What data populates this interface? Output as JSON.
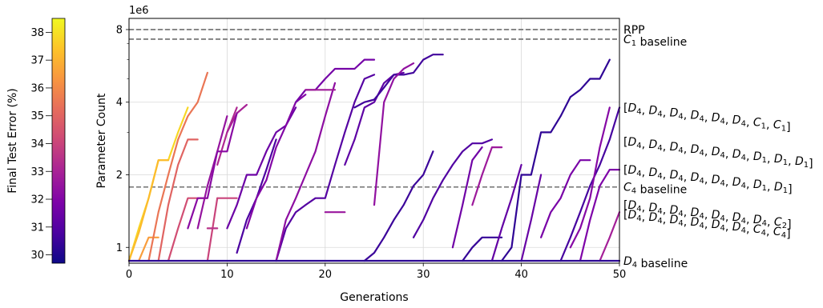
{
  "chart_data": {
    "type": "line",
    "xlabel": "Generations",
    "ylabel": "Parameter Count",
    "y_offset_text": "1e6",
    "xlim": [
      0,
      50
    ],
    "ylim": [
      0.86,
      8.9
    ],
    "y_scale": "log",
    "x_ticks": [
      "0",
      "10",
      "20",
      "30",
      "40",
      "50"
    ],
    "y_ticks": [
      {
        "value": 1,
        "label": "1"
      },
      {
        "value": 2,
        "label": "2"
      },
      {
        "value": 4,
        "label": "4"
      },
      {
        "value": 8,
        "label": "8"
      }
    ],
    "grid": true,
    "colorbar": {
      "label": "Final Test Error (%)",
      "min": 29.7,
      "max": 38.5,
      "ticks": [
        "30",
        "31",
        "32",
        "33",
        "34",
        "35",
        "36",
        "37",
        "38"
      ],
      "colormap": "plasma"
    },
    "reference_lines": [
      {
        "name": "RPP",
        "y": 8.0
      },
      {
        "name": "C_1 baseline",
        "y": 7.3
      },
      {
        "name": "C_4 baseline",
        "y": 1.78
      },
      {
        "name": "D_4 baseline",
        "y": 0.88
      }
    ],
    "right_labels": [
      {
        "text": "[D4, D4, D4, D4, D4, D4, C1, C1]",
        "y": 3.8
      },
      {
        "text": "[D4, D4, D4, D4, D4, D4, D1, D1, D1]",
        "y": 2.75
      },
      {
        "text": "[D4, D4, D4, D4, D4, D4, D1, D1]",
        "y": 2.1
      },
      {
        "text": "[D4, D4, D4, D4, D4, D4, D4, C2]",
        "y": 1.5
      },
      {
        "text": "[D4, D4, D4, D4, D4, D4, C4, C4]",
        "y": 1.37
      }
    ],
    "series": [
      {
        "error": 37.8,
        "x": [
          0,
          1,
          2,
          3,
          4,
          5,
          6
        ],
        "y": [
          0.88,
          1.2,
          1.6,
          2.3,
          2.3,
          3.0,
          3.8
        ]
      },
      {
        "error": 37.2,
        "x": [
          0,
          1,
          2,
          3,
          4
        ],
        "y": [
          0.88,
          1.15,
          1.6,
          2.3,
          2.3
        ]
      },
      {
        "error": 36.5,
        "x": [
          1,
          2,
          3
        ],
        "y": [
          0.88,
          1.1,
          1.1
        ]
      },
      {
        "error": 35.5,
        "x": [
          2,
          3,
          4,
          5,
          6,
          7,
          8
        ],
        "y": [
          0.88,
          1.4,
          2.0,
          2.8,
          3.5,
          4.0,
          5.3
        ]
      },
      {
        "error": 35.0,
        "x": [
          3,
          4,
          5,
          6,
          7
        ],
        "y": [
          0.88,
          1.5,
          2.2,
          2.8,
          2.8
        ]
      },
      {
        "error": 34.3,
        "x": [
          4,
          5,
          6,
          7,
          8
        ],
        "y": [
          0.88,
          1.2,
          1.6,
          1.6,
          1.6
        ]
      },
      {
        "error": 34.0,
        "x": [
          8,
          9
        ],
        "y": [
          0.88,
          1.6
        ]
      },
      {
        "error": 34.0,
        "x": [
          9,
          10,
          11
        ],
        "y": [
          1.6,
          1.6,
          1.6
        ]
      },
      {
        "error": 33.5,
        "x": [
          8,
          9
        ],
        "y": [
          1.2,
          1.2
        ]
      },
      {
        "error": 33.2,
        "x": [
          9,
          10,
          11
        ],
        "y": [
          2.2,
          3.0,
          3.8
        ]
      },
      {
        "error": 33.0,
        "x": [
          10,
          11,
          12
        ],
        "y": [
          3.0,
          3.6,
          3.9
        ]
      },
      {
        "error": 32.5,
        "x": [
          7,
          8,
          9,
          10
        ],
        "y": [
          1.2,
          1.8,
          2.5,
          3.5
        ]
      },
      {
        "error": 32.2,
        "x": [
          6,
          7,
          8,
          9,
          10,
          11
        ],
        "y": [
          1.2,
          1.6,
          1.6,
          2.5,
          2.5,
          3.6
        ]
      },
      {
        "error": 31.5,
        "x": [
          10,
          11,
          12,
          13,
          14,
          15,
          16,
          17
        ],
        "y": [
          1.2,
          1.5,
          2.0,
          2.0,
          2.5,
          3.0,
          3.2,
          3.8
        ]
      },
      {
        "error": 30.8,
        "x": [
          11,
          12,
          13,
          14,
          15
        ],
        "y": [
          0.95,
          1.3,
          1.6,
          2.1,
          2.8
        ]
      },
      {
        "error": 32.0,
        "x": [
          12,
          13,
          14,
          15,
          16,
          17,
          18
        ],
        "y": [
          1.2,
          1.6,
          1.9,
          2.6,
          3.2,
          4.0,
          4.3
        ]
      },
      {
        "error": 31.0,
        "x": [
          15,
          16,
          17,
          18,
          19,
          20,
          21,
          22,
          23,
          24,
          25
        ],
        "y": [
          0.88,
          1.2,
          1.4,
          1.5,
          1.6,
          1.6,
          2.2,
          3.0,
          4.0,
          5.0,
          5.2
        ]
      },
      {
        "error": 32.3,
        "x": [
          15,
          16,
          17,
          18,
          19,
          20,
          21
        ],
        "y": [
          0.88,
          1.3,
          1.6,
          2.0,
          2.5,
          3.5,
          4.8
        ]
      },
      {
        "error": 31.7,
        "x": [
          17,
          18,
          19,
          20,
          21,
          22,
          23,
          24,
          25
        ],
        "y": [
          4.0,
          4.5,
          4.5,
          5.0,
          5.5,
          5.5,
          5.5,
          6.0,
          6.0
        ]
      },
      {
        "error": 32.8,
        "x": [
          18,
          19,
          20,
          21
        ],
        "y": [
          4.5,
          4.5,
          4.5,
          4.5
        ]
      },
      {
        "error": 32.6,
        "x": [
          20,
          21,
          22
        ],
        "y": [
          1.4,
          1.4,
          1.4
        ]
      },
      {
        "error": 31.2,
        "x": [
          22,
          23,
          24,
          25,
          26,
          27,
          28
        ],
        "y": [
          2.2,
          2.8,
          3.8,
          4.0,
          4.8,
          5.2,
          5.3
        ]
      },
      {
        "error": 30.6,
        "x": [
          23,
          24,
          25,
          26,
          27,
          28,
          29,
          30,
          31,
          32
        ],
        "y": [
          3.8,
          4.0,
          4.1,
          4.6,
          5.2,
          5.2,
          5.3,
          6.0,
          6.3,
          6.3
        ]
      },
      {
        "error": 32.4,
        "x": [
          25,
          26,
          27,
          28,
          29
        ],
        "y": [
          1.5,
          4.0,
          5.0,
          5.5,
          5.8
        ]
      },
      {
        "error": 30.5,
        "x": [
          24,
          25,
          26,
          27,
          28,
          29,
          30,
          31
        ],
        "y": [
          0.88,
          0.95,
          1.1,
          1.3,
          1.5,
          1.8,
          2.0,
          2.5
        ]
      },
      {
        "error": 30.9,
        "x": [
          29,
          30,
          31,
          32,
          33,
          34,
          35,
          36,
          37
        ],
        "y": [
          1.1,
          1.3,
          1.6,
          1.9,
          2.2,
          2.5,
          2.7,
          2.7,
          2.8
        ]
      },
      {
        "error": 31.6,
        "x": [
          33,
          34,
          35,
          36
        ],
        "y": [
          1.0,
          1.5,
          2.3,
          2.6
        ]
      },
      {
        "error": 32.7,
        "x": [
          35,
          36,
          37,
          38
        ],
        "y": [
          1.5,
          2.0,
          2.6,
          2.6
        ]
      },
      {
        "error": 30.4,
        "x": [
          34,
          35,
          36,
          37,
          38
        ],
        "y": [
          0.88,
          1.0,
          1.1,
          1.1,
          1.1
        ]
      },
      {
        "error": 31.3,
        "x": [
          37,
          38,
          39,
          40
        ],
        "y": [
          0.88,
          1.2,
          1.6,
          2.2
        ]
      },
      {
        "error": 30.3,
        "x": [
          38,
          39,
          40,
          41,
          42,
          43,
          44,
          45,
          46,
          47,
          48,
          49
        ],
        "y": [
          0.88,
          1.0,
          2.0,
          2.0,
          3.0,
          3.0,
          3.5,
          4.2,
          4.5,
          5.0,
          5.0,
          6.0
        ]
      },
      {
        "error": 31.4,
        "x": [
          40,
          41,
          42
        ],
        "y": [
          0.88,
          1.3,
          2.0
        ]
      },
      {
        "error": 31.8,
        "x": [
          42,
          43,
          44,
          45,
          46,
          47
        ],
        "y": [
          1.1,
          1.4,
          1.6,
          2.0,
          2.3,
          2.3
        ]
      },
      {
        "error": 30.7,
        "x": [
          44,
          45,
          46,
          47,
          48,
          49,
          50
        ],
        "y": [
          0.88,
          1.1,
          1.4,
          1.8,
          2.2,
          2.8,
          3.8
        ]
      },
      {
        "error": 31.9,
        "x": [
          46,
          47,
          48,
          49,
          50
        ],
        "y": [
          0.88,
          1.3,
          1.8,
          2.1,
          2.1
        ]
      },
      {
        "error": 32.9,
        "x": [
          48,
          49,
          50
        ],
        "y": [
          0.88,
          1.1,
          1.4
        ]
      },
      {
        "error": 32.1,
        "x": [
          45,
          46,
          47,
          48,
          49
        ],
        "y": [
          1.0,
          1.2,
          1.6,
          2.6,
          3.8
        ]
      },
      {
        "error": 30.2,
        "x": [
          0,
          10,
          20,
          30,
          40,
          50
        ],
        "y": [
          0.88,
          0.88,
          0.88,
          0.88,
          0.88,
          0.88
        ]
      }
    ]
  }
}
